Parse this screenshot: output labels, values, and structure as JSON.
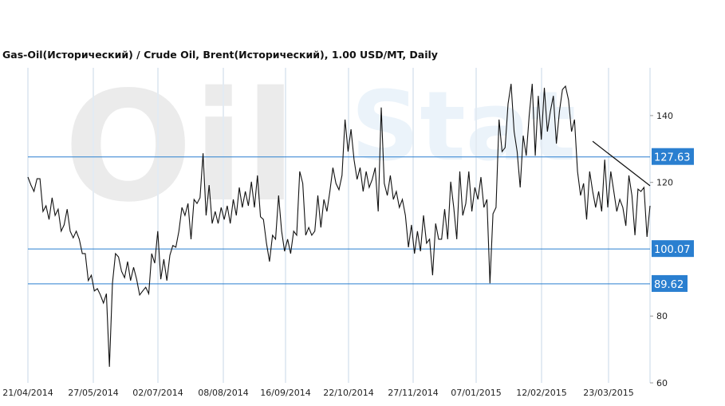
{
  "chart_data": {
    "type": "line",
    "title": "Gas-Oil(Исторический) / Crude Oil, Brent(Исторический), 1.00 USD/MT, Daily",
    "watermark": "OilStat",
    "xlabel": "",
    "ylabel": "",
    "ylim": [
      60,
      154.3
    ],
    "y_ticks": [
      60,
      80,
      120,
      140
    ],
    "x_tick_labels": [
      "21/04/2014",
      "27/05/2014",
      "02/07/2014",
      "08/08/2014",
      "16/09/2014",
      "22/10/2014",
      "27/11/2014",
      "07/01/2015",
      "12/02/2015",
      "23/03/2015"
    ],
    "grid": true,
    "levels": [
      {
        "label": "127.63",
        "value": 127.63
      },
      {
        "label": "100.07",
        "value": 100.07
      },
      {
        "label": "89.62",
        "value": 89.62
      }
    ],
    "trendline": {
      "start_value": 132.3,
      "end_value": 119.0
    },
    "series": [
      {
        "name": "Gas-Oil / Brent",
        "values": [
          121.6,
          119.2,
          117.3,
          121.1,
          121.1,
          111.3,
          113.0,
          108.9,
          115.4,
          110.1,
          112.0,
          105.4,
          107.3,
          112.0,
          105.4,
          103.4,
          105.4,
          103.0,
          98.7,
          98.7,
          90.6,
          92.2,
          87.5,
          88.2,
          86.3,
          83.9,
          86.7,
          64.8,
          89.8,
          98.7,
          97.7,
          93.4,
          91.5,
          96.3,
          90.6,
          94.6,
          91.0,
          86.3,
          87.5,
          88.6,
          86.7,
          98.7,
          95.8,
          105.4,
          91.0,
          97.0,
          90.6,
          98.2,
          101.1,
          100.6,
          105.4,
          112.5,
          110.1,
          113.7,
          103.0,
          114.9,
          113.7,
          115.4,
          128.7,
          110.1,
          119.2,
          107.7,
          111.3,
          107.7,
          112.5,
          108.9,
          113.0,
          107.7,
          114.9,
          110.1,
          118.5,
          112.5,
          117.3,
          113.0,
          120.2,
          112.5,
          122.1,
          109.7,
          108.9,
          101.8,
          96.3,
          104.2,
          103.0,
          116.1,
          105.4,
          99.4,
          103.0,
          98.7,
          105.4,
          104.2,
          123.3,
          119.7,
          104.2,
          106.5,
          104.2,
          105.4,
          116.1,
          106.5,
          114.9,
          111.3,
          117.3,
          124.4,
          119.7,
          117.8,
          122.1,
          138.8,
          129.2,
          135.9,
          126.8,
          120.9,
          124.4,
          117.3,
          123.3,
          118.5,
          120.9,
          124.4,
          111.3,
          142.4,
          119.7,
          116.1,
          122.1,
          114.9,
          117.3,
          112.5,
          114.9,
          110.1,
          100.6,
          107.3,
          98.7,
          105.4,
          99.4,
          110.1,
          101.8,
          103.0,
          92.2,
          107.7,
          103.0,
          103.0,
          112.0,
          103.0,
          120.2,
          112.5,
          103.0,
          123.3,
          110.1,
          113.7,
          123.3,
          111.3,
          118.5,
          114.9,
          121.6,
          112.5,
          114.9,
          89.8,
          110.6,
          112.5,
          138.8,
          129.2,
          130.4,
          143.5,
          149.5,
          135.2,
          129.2,
          118.5,
          134.0,
          128.0,
          140.0,
          149.5,
          128.0,
          145.9,
          132.8,
          148.3,
          135.2,
          141.2,
          145.9,
          131.6,
          141.2,
          147.8,
          148.8,
          144.7,
          135.2,
          138.8,
          123.3,
          116.1,
          119.7,
          108.9,
          123.3,
          117.3,
          112.5,
          117.3,
          111.3,
          126.8,
          112.5,
          123.3,
          117.3,
          111.3,
          114.9,
          112.5,
          107.0,
          122.1,
          116.1,
          104.2,
          118.0,
          117.3,
          118.5,
          103.7,
          113.0
        ]
      }
    ]
  }
}
